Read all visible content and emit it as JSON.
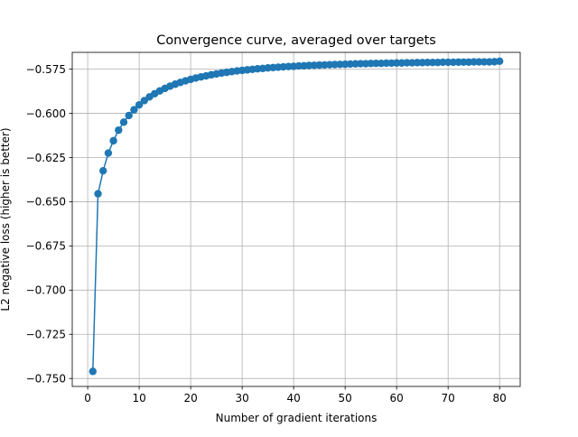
{
  "chart_data": {
    "type": "line",
    "title": "Convergence curve, averaged over targets",
    "xlabel": "Number of gradient iterations",
    "ylabel": "L2 negative loss (higher is better)",
    "xlim": [
      -3,
      84
    ],
    "ylim": [
      -0.7545,
      -0.5655
    ],
    "xticks": [
      0,
      10,
      20,
      30,
      40,
      50,
      60,
      70,
      80
    ],
    "xtick_labels": [
      "0",
      "10",
      "20",
      "30",
      "40",
      "50",
      "60",
      "70",
      "80"
    ],
    "yticks": [
      -0.75,
      -0.725,
      -0.7,
      -0.675,
      -0.65,
      -0.625,
      -0.6,
      -0.575
    ],
    "ytick_labels": [
      "−0.750",
      "−0.725",
      "−0.700",
      "−0.675",
      "−0.650",
      "−0.625",
      "−0.600",
      "−0.575"
    ],
    "grid": true,
    "legend": "none",
    "marker": "circle",
    "series": [
      {
        "color": "#1f77b4",
        "x": [
          1,
          2,
          3,
          4,
          5,
          6,
          7,
          8,
          9,
          10,
          11,
          12,
          13,
          14,
          15,
          16,
          17,
          18,
          19,
          20,
          21,
          22,
          23,
          24,
          25,
          26,
          27,
          28,
          29,
          30,
          31,
          32,
          33,
          34,
          35,
          36,
          37,
          38,
          39,
          40,
          41,
          42,
          43,
          44,
          45,
          46,
          47,
          48,
          49,
          50,
          51,
          52,
          53,
          54,
          55,
          56,
          57,
          58,
          59,
          60,
          61,
          62,
          63,
          64,
          65,
          66,
          67,
          68,
          69,
          70,
          71,
          72,
          73,
          74,
          75,
          76,
          77,
          78,
          79,
          80
        ],
        "values": [
          -0.746,
          -0.6455,
          -0.6325,
          -0.6225,
          -0.6155,
          -0.6095,
          -0.605,
          -0.6012,
          -0.598,
          -0.5952,
          -0.5928,
          -0.5907,
          -0.5889,
          -0.5873,
          -0.5859,
          -0.5846,
          -0.5835,
          -0.5825,
          -0.5816,
          -0.5808,
          -0.58,
          -0.5794,
          -0.5788,
          -0.5782,
          -0.5777,
          -0.5772,
          -0.5768,
          -0.5764,
          -0.576,
          -0.5757,
          -0.5754,
          -0.5751,
          -0.5748,
          -0.5746,
          -0.5743,
          -0.5741,
          -0.5739,
          -0.5737,
          -0.5735,
          -0.5734,
          -0.5732,
          -0.5731,
          -0.5729,
          -0.5728,
          -0.5727,
          -0.5726,
          -0.5725,
          -0.5724,
          -0.5723,
          -0.5722,
          -0.5721,
          -0.572,
          -0.5719,
          -0.5719,
          -0.5718,
          -0.5717,
          -0.5717,
          -0.5716,
          -0.5716,
          -0.5715,
          -0.5715,
          -0.5714,
          -0.5714,
          -0.5713,
          -0.5713,
          -0.5712,
          -0.5712,
          -0.5712,
          -0.5711,
          -0.5711,
          -0.5711,
          -0.571,
          -0.571,
          -0.571,
          -0.5709,
          -0.5709,
          -0.5709,
          -0.5709,
          -0.5708,
          -0.5705
        ]
      }
    ]
  }
}
